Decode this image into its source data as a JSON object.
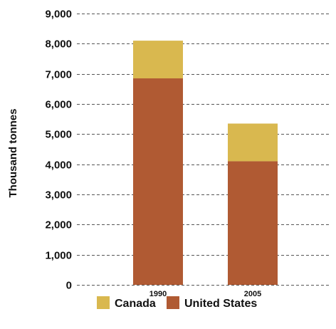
{
  "chart_data": {
    "type": "bar",
    "stacked": true,
    "title": "",
    "xlabel": "",
    "ylabel": "Thousand tonnes",
    "categories": [
      "1990",
      "2005"
    ],
    "series": [
      {
        "name": "United States",
        "color": "#b05a33",
        "values": [
          6850,
          4100
        ]
      },
      {
        "name": "Canada",
        "color": "#d9b84f",
        "values": [
          1250,
          1250
        ]
      }
    ],
    "ylim": [
      0,
      9000
    ],
    "yticks": [
      0,
      1000,
      2000,
      3000,
      4000,
      5000,
      6000,
      7000,
      8000,
      9000
    ],
    "ytick_labels": [
      "0",
      "1,000",
      "2,000",
      "3,000",
      "4,000",
      "5,000",
      "6,000",
      "7,000",
      "8,000",
      "9,000"
    ],
    "grid": true,
    "legend": {
      "position": "bottom",
      "order": [
        "Canada",
        "United States"
      ]
    }
  }
}
